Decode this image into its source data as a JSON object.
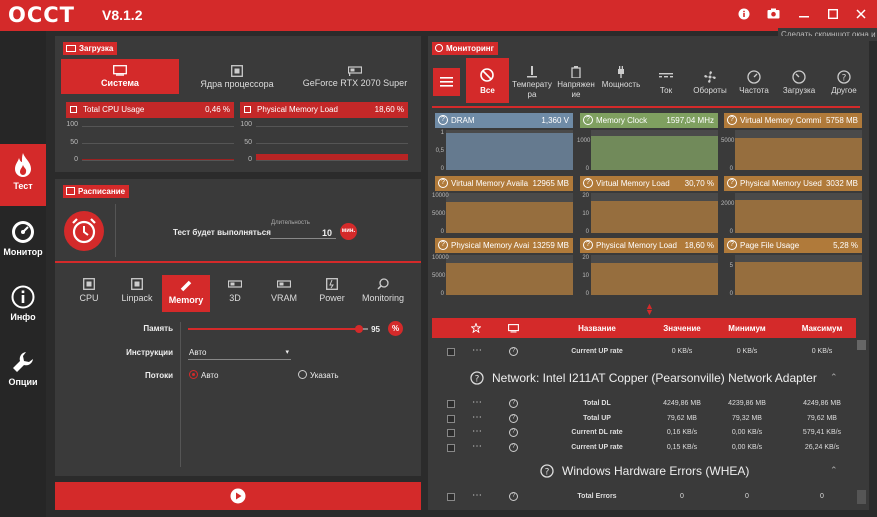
{
  "app": {
    "logo": "OCCT",
    "version": "V8.1.2",
    "tooltip": "Сделать скриншот окна и отправить"
  },
  "nav": [
    {
      "label": "Тест",
      "icon": "flame-icon",
      "active": true
    },
    {
      "label": "Монитор",
      "icon": "gauge-icon"
    },
    {
      "label": "Инфо",
      "icon": "info-icon"
    },
    {
      "label": "Опции",
      "icon": "wrench-icon"
    }
  ],
  "load": {
    "title": "Загрузка",
    "tabs": [
      "Система",
      "Ядра процессора",
      "GeForce RTX 2070 Super"
    ],
    "charts": [
      {
        "name": "Total CPU Usage",
        "value": "0,46 %",
        "ticks": [
          "100",
          "50",
          "0"
        ],
        "level": 0.005
      },
      {
        "name": "Physical Memory Load",
        "value": "18,60 %",
        "ticks": [
          "100",
          "50",
          "0"
        ],
        "level": 0.186
      }
    ]
  },
  "schedule": {
    "title": "Расписание",
    "label": "Тест будет выполняться",
    "duration_label": "Длительность",
    "duration": "10",
    "unit": "мин."
  },
  "tests": {
    "items": [
      "CPU",
      "Linpack",
      "Memory",
      "3D",
      "VRAM",
      "Power",
      "Monitoring"
    ],
    "active": "Memory",
    "memory_label": "Память",
    "memory_value": "95",
    "memory_unit": "%",
    "memory_level": 0.95,
    "instr_label": "Инструкции",
    "instr_value": "Авто",
    "threads_label": "Потоки",
    "threads_opt1": "Авто",
    "threads_opt2": "Указать"
  },
  "monitor": {
    "title": "Мониторинг",
    "cats": [
      "Все",
      "Температура",
      "Напряжение",
      "Мощность",
      "Ток",
      "Обороты",
      "Частота",
      "Загрузка",
      "Другое"
    ],
    "cards": [
      {
        "name": "DRAM",
        "value": "1,360 V",
        "ticks": [
          "1",
          "0,5",
          "0"
        ],
        "level": 0.93,
        "color": "#6f8ba6"
      },
      {
        "name": "Memory Clock",
        "value": "1597,04 MHz",
        "ticks": [
          "1000",
          "0"
        ],
        "level": 0.85,
        "color": "#7fa060"
      },
      {
        "name": "Virtual Memory Commi",
        "value": "5758 MB",
        "ticks": [
          "5000",
          "0"
        ],
        "level": 0.8,
        "color": "#b07a3a"
      },
      {
        "name": "Virtual Memory Availa",
        "value": "12965 MB",
        "ticks": [
          "10000",
          "5000",
          "0"
        ],
        "level": 0.78,
        "color": "#b07a3a"
      },
      {
        "name": "Virtual Memory Load",
        "value": "30,70 %",
        "ticks": [
          "20",
          "10",
          "0"
        ],
        "level": 0.8,
        "color": "#b07a3a"
      },
      {
        "name": "Physical Memory Used",
        "value": "3032 MB",
        "ticks": [
          "2000",
          "0"
        ],
        "level": 0.82,
        "color": "#b07a3a"
      },
      {
        "name": "Physical Memory Avai",
        "value": "13259 MB",
        "ticks": [
          "10000",
          "5000",
          "0"
        ],
        "level": 0.8,
        "color": "#b07a3a"
      },
      {
        "name": "Physical Memory Load",
        "value": "18,60 %",
        "ticks": [
          "20",
          "10",
          "0"
        ],
        "level": 0.8,
        "color": "#b07a3a"
      },
      {
        "name": "Page File Usage",
        "value": "5,28 %",
        "ticks": [
          "5",
          "0"
        ],
        "level": 0.82,
        "color": "#b07a3a"
      }
    ],
    "table_head": {
      "name": "Название",
      "value": "Значение",
      "min": "Минимум",
      "max": "Максимум"
    },
    "row0": [
      "Current UP rate",
      "0 KB/s",
      "0 KB/s",
      "0 KB/s"
    ],
    "net_title": "Network: Intel I211AT Copper (Pearsonville) Network Adapter",
    "net_rows": [
      [
        "Total DL",
        "4249,86 MB",
        "4239,86 MB",
        "4249,86 MB"
      ],
      [
        "Total UP",
        "79,62 MB",
        "79,32 MB",
        "79,62 MB"
      ],
      [
        "Current DL rate",
        "0,16 KB/s",
        "0,00 KB/s",
        "579,41 KB/s"
      ],
      [
        "Current UP rate",
        "0,15 KB/s",
        "0,00 KB/s",
        "26,24 KB/s"
      ]
    ],
    "whea_title": "Windows Hardware Errors (WHEA)",
    "whea_rows": [
      [
        "Total Errors",
        "0",
        "0",
        "0"
      ]
    ]
  }
}
